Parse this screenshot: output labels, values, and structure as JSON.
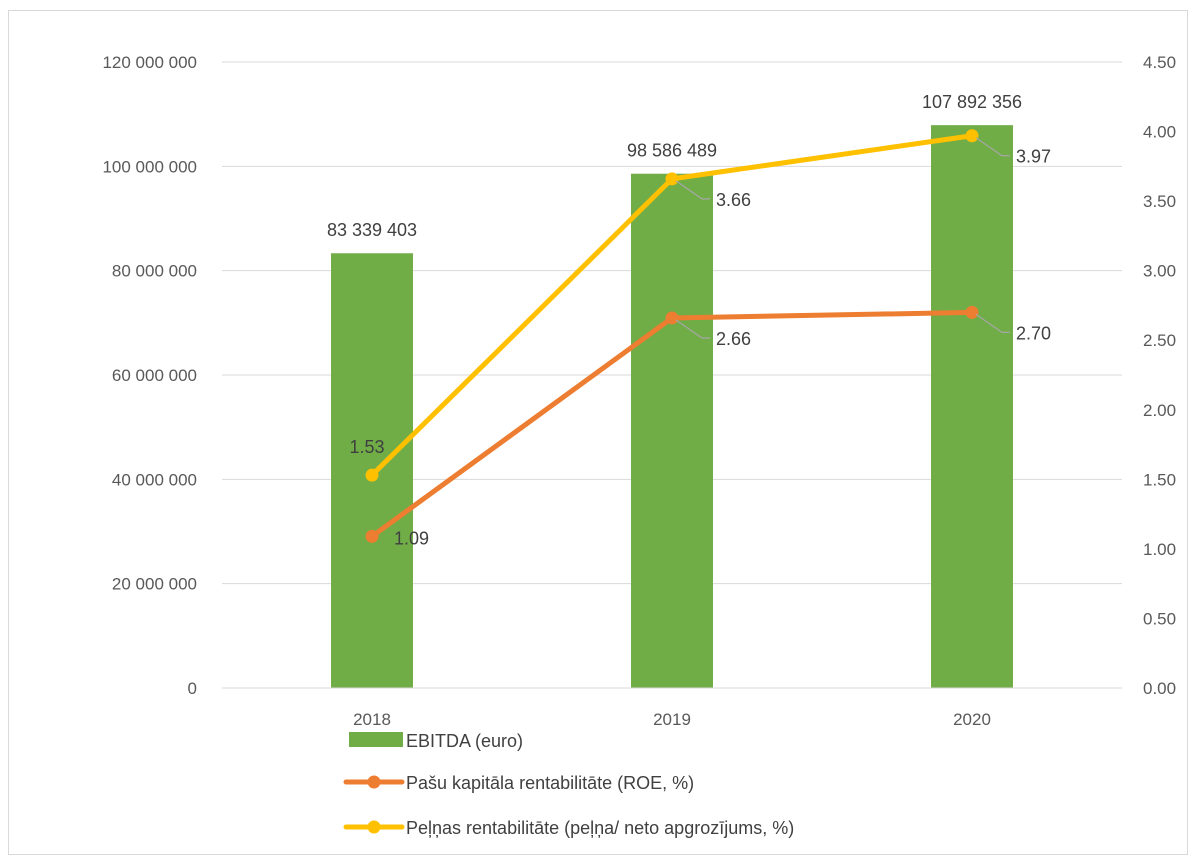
{
  "chart_data": {
    "type": "bar",
    "categories": [
      "2018",
      "2019",
      "2020"
    ],
    "series": [
      {
        "name": "EBITDA (euro)",
        "type": "bar",
        "axis": "left",
        "values": [
          83339403,
          98586489,
          107892356
        ],
        "labels": [
          "83 339 403",
          "98 586 489",
          "107 892 356"
        ],
        "color": "#70ad47"
      },
      {
        "name": "Pašu kapitāla rentabilitāte (ROE, %)",
        "type": "line",
        "axis": "right",
        "values": [
          1.09,
          2.66,
          2.7
        ],
        "labels": [
          "1.09",
          "2.66",
          "2.70"
        ],
        "color": "#ed7d31"
      },
      {
        "name": "Peļņas rentabilitāte (peļņa/ neto apgrozījums, %)",
        "type": "line",
        "axis": "right",
        "values": [
          1.53,
          3.66,
          3.97
        ],
        "labels": [
          "1.53",
          "3.66",
          "3.97"
        ],
        "color": "#ffc000"
      }
    ],
    "y_left": {
      "ylim": [
        0,
        120000000
      ],
      "ticks": [
        0,
        20000000,
        40000000,
        60000000,
        80000000,
        100000000,
        120000000
      ],
      "tick_labels": [
        "0",
        "20 000 000",
        "40 000 000",
        "60 000 000",
        "80 000 000",
        "100 000 000",
        "120 000 000"
      ]
    },
    "y_right": {
      "ylim": [
        0,
        4.5
      ],
      "ticks": [
        0,
        0.5,
        1,
        1.5,
        2,
        2.5,
        3,
        3.5,
        4,
        4.5
      ],
      "tick_labels": [
        "0.00",
        "0.50",
        "1.00",
        "1.50",
        "2.00",
        "2.50",
        "3.00",
        "3.50",
        "4.00",
        "4.50"
      ]
    },
    "grid": true,
    "legend": "bottom-left",
    "title": "",
    "xlabel": "",
    "ylabel": ""
  }
}
